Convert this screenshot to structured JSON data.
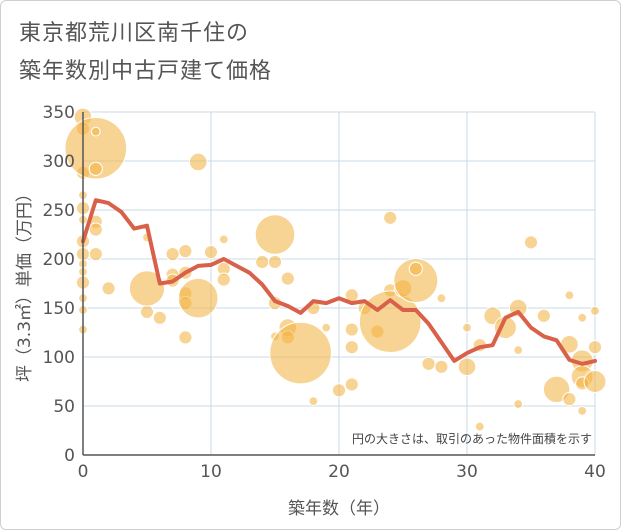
{
  "title_line1": "東京都荒川区南千住の",
  "title_line2": "築年数別中古戸建て価格",
  "chart_data": {
    "type": "scatter",
    "xlabel": "築年数（年）",
    "ylabel": "坪（3.3㎡）単価（万円）",
    "xlim": [
      0,
      40
    ],
    "ylim": [
      0,
      350
    ],
    "xticks": [
      "0",
      "10",
      "20",
      "30",
      "40"
    ],
    "yticks": [
      "0",
      "50",
      "100",
      "150",
      "200",
      "250",
      "300",
      "350"
    ],
    "grid": true,
    "annotation": "円の大きさは、取引のあった物件面積を示す",
    "colors": {
      "bubble": "#f2b13c",
      "line": "#d9614a",
      "axis": "#555555",
      "grid": "#c9d9e8"
    },
    "series": [
      {
        "type": "line",
        "x": [
          0,
          1,
          2,
          3,
          4,
          5,
          6,
          7,
          8,
          9,
          10,
          11,
          12,
          13,
          14,
          15,
          16,
          17,
          18,
          19,
          20,
          21,
          22,
          23,
          24,
          25,
          26,
          27,
          28,
          29,
          30,
          31,
          32,
          33,
          34,
          35,
          36,
          37,
          38,
          39,
          40
        ],
        "values": [
          218,
          260,
          257,
          248,
          231,
          234,
          175,
          177,
          186,
          193,
          194,
          200,
          193,
          186,
          174,
          157,
          152,
          145,
          157,
          155,
          160,
          155,
          157,
          148,
          158,
          148,
          148,
          134,
          115,
          96,
          104,
          110,
          112,
          140,
          146,
          130,
          121,
          117,
          97,
          93,
          96
        ]
      },
      {
        "type": "bubble",
        "points": [
          {
            "x": 0,
            "y": 345,
            "s": 4
          },
          {
            "x": 0,
            "y": 333,
            "s": 3
          },
          {
            "x": 0,
            "y": 288,
            "s": 3
          },
          {
            "x": 0,
            "y": 265,
            "s": 2
          },
          {
            "x": 0,
            "y": 252,
            "s": 3
          },
          {
            "x": 0,
            "y": 240,
            "s": 2
          },
          {
            "x": 0,
            "y": 218,
            "s": 3
          },
          {
            "x": 0,
            "y": 205,
            "s": 3
          },
          {
            "x": 0,
            "y": 195,
            "s": 2
          },
          {
            "x": 0,
            "y": 187,
            "s": 2
          },
          {
            "x": 0,
            "y": 176,
            "s": 3
          },
          {
            "x": 0,
            "y": 160,
            "s": 2
          },
          {
            "x": 0,
            "y": 148,
            "s": 2
          },
          {
            "x": 0,
            "y": 128,
            "s": 2
          },
          {
            "x": 1,
            "y": 313,
            "s": 14
          },
          {
            "x": 1,
            "y": 292,
            "s": 3
          },
          {
            "x": 1,
            "y": 330,
            "s": 2
          },
          {
            "x": 1,
            "y": 238,
            "s": 3
          },
          {
            "x": 1,
            "y": 230,
            "s": 3
          },
          {
            "x": 1,
            "y": 205,
            "s": 3
          },
          {
            "x": 2,
            "y": 170,
            "s": 3
          },
          {
            "x": 5,
            "y": 222,
            "s": 2
          },
          {
            "x": 5,
            "y": 146,
            "s": 3
          },
          {
            "x": 5,
            "y": 170,
            "s": 8
          },
          {
            "x": 6,
            "y": 140,
            "s": 3
          },
          {
            "x": 7,
            "y": 205,
            "s": 3
          },
          {
            "x": 7,
            "y": 184,
            "s": 3
          },
          {
            "x": 7,
            "y": 178,
            "s": 3
          },
          {
            "x": 8,
            "y": 208,
            "s": 3
          },
          {
            "x": 8,
            "y": 186,
            "s": 3
          },
          {
            "x": 8,
            "y": 165,
            "s": 3
          },
          {
            "x": 8,
            "y": 155,
            "s": 3
          },
          {
            "x": 8,
            "y": 120,
            "s": 3
          },
          {
            "x": 9,
            "y": 299,
            "s": 4
          },
          {
            "x": 9,
            "y": 160,
            "s": 9
          },
          {
            "x": 10,
            "y": 207,
            "s": 3
          },
          {
            "x": 11,
            "y": 220,
            "s": 2
          },
          {
            "x": 11,
            "y": 190,
            "s": 3
          },
          {
            "x": 11,
            "y": 179,
            "s": 3
          },
          {
            "x": 14,
            "y": 197,
            "s": 3
          },
          {
            "x": 15,
            "y": 225,
            "s": 9
          },
          {
            "x": 15,
            "y": 197,
            "s": 3
          },
          {
            "x": 15,
            "y": 155,
            "s": 3
          },
          {
            "x": 15,
            "y": 121,
            "s": 2
          },
          {
            "x": 16,
            "y": 180,
            "s": 3
          },
          {
            "x": 16,
            "y": 130,
            "s": 4
          },
          {
            "x": 16,
            "y": 120,
            "s": 3
          },
          {
            "x": 17,
            "y": 104,
            "s": 14
          },
          {
            "x": 18,
            "y": 150,
            "s": 3
          },
          {
            "x": 18,
            "y": 55,
            "s": 2
          },
          {
            "x": 19,
            "y": 130,
            "s": 2
          },
          {
            "x": 20,
            "y": 66,
            "s": 3
          },
          {
            "x": 21,
            "y": 163,
            "s": 3
          },
          {
            "x": 21,
            "y": 128,
            "s": 3
          },
          {
            "x": 21,
            "y": 110,
            "s": 3
          },
          {
            "x": 21,
            "y": 72,
            "s": 3
          },
          {
            "x": 22,
            "y": 150,
            "s": 3
          },
          {
            "x": 23,
            "y": 126,
            "s": 3
          },
          {
            "x": 24,
            "y": 242,
            "s": 3
          },
          {
            "x": 24,
            "y": 168,
            "s": 3
          },
          {
            "x": 24,
            "y": 136,
            "s": 14
          },
          {
            "x": 25,
            "y": 170,
            "s": 4
          },
          {
            "x": 26,
            "y": 178,
            "s": 10
          },
          {
            "x": 26,
            "y": 190,
            "s": 3
          },
          {
            "x": 27,
            "y": 93,
            "s": 3
          },
          {
            "x": 28,
            "y": 160,
            "s": 2
          },
          {
            "x": 28,
            "y": 90,
            "s": 3
          },
          {
            "x": 30,
            "y": 130,
            "s": 2
          },
          {
            "x": 30,
            "y": 90,
            "s": 4
          },
          {
            "x": 31,
            "y": 112,
            "s": 3
          },
          {
            "x": 31,
            "y": 29,
            "s": 2
          },
          {
            "x": 32,
            "y": 142,
            "s": 4
          },
          {
            "x": 33,
            "y": 130,
            "s": 5
          },
          {
            "x": 34,
            "y": 150,
            "s": 4
          },
          {
            "x": 34,
            "y": 107,
            "s": 2
          },
          {
            "x": 34,
            "y": 52,
            "s": 2
          },
          {
            "x": 35,
            "y": 217,
            "s": 3
          },
          {
            "x": 36,
            "y": 142,
            "s": 3
          },
          {
            "x": 37,
            "y": 67,
            "s": 6
          },
          {
            "x": 38,
            "y": 163,
            "s": 2
          },
          {
            "x": 38,
            "y": 113,
            "s": 4
          },
          {
            "x": 38,
            "y": 57,
            "s": 3
          },
          {
            "x": 39,
            "y": 140,
            "s": 2
          },
          {
            "x": 39,
            "y": 96,
            "s": 5
          },
          {
            "x": 39,
            "y": 80,
            "s": 5
          },
          {
            "x": 39,
            "y": 73,
            "s": 3
          },
          {
            "x": 39,
            "y": 45,
            "s": 2
          },
          {
            "x": 40,
            "y": 147,
            "s": 2
          },
          {
            "x": 40,
            "y": 110,
            "s": 3
          },
          {
            "x": 40,
            "y": 75,
            "s": 5
          }
        ]
      }
    ]
  }
}
